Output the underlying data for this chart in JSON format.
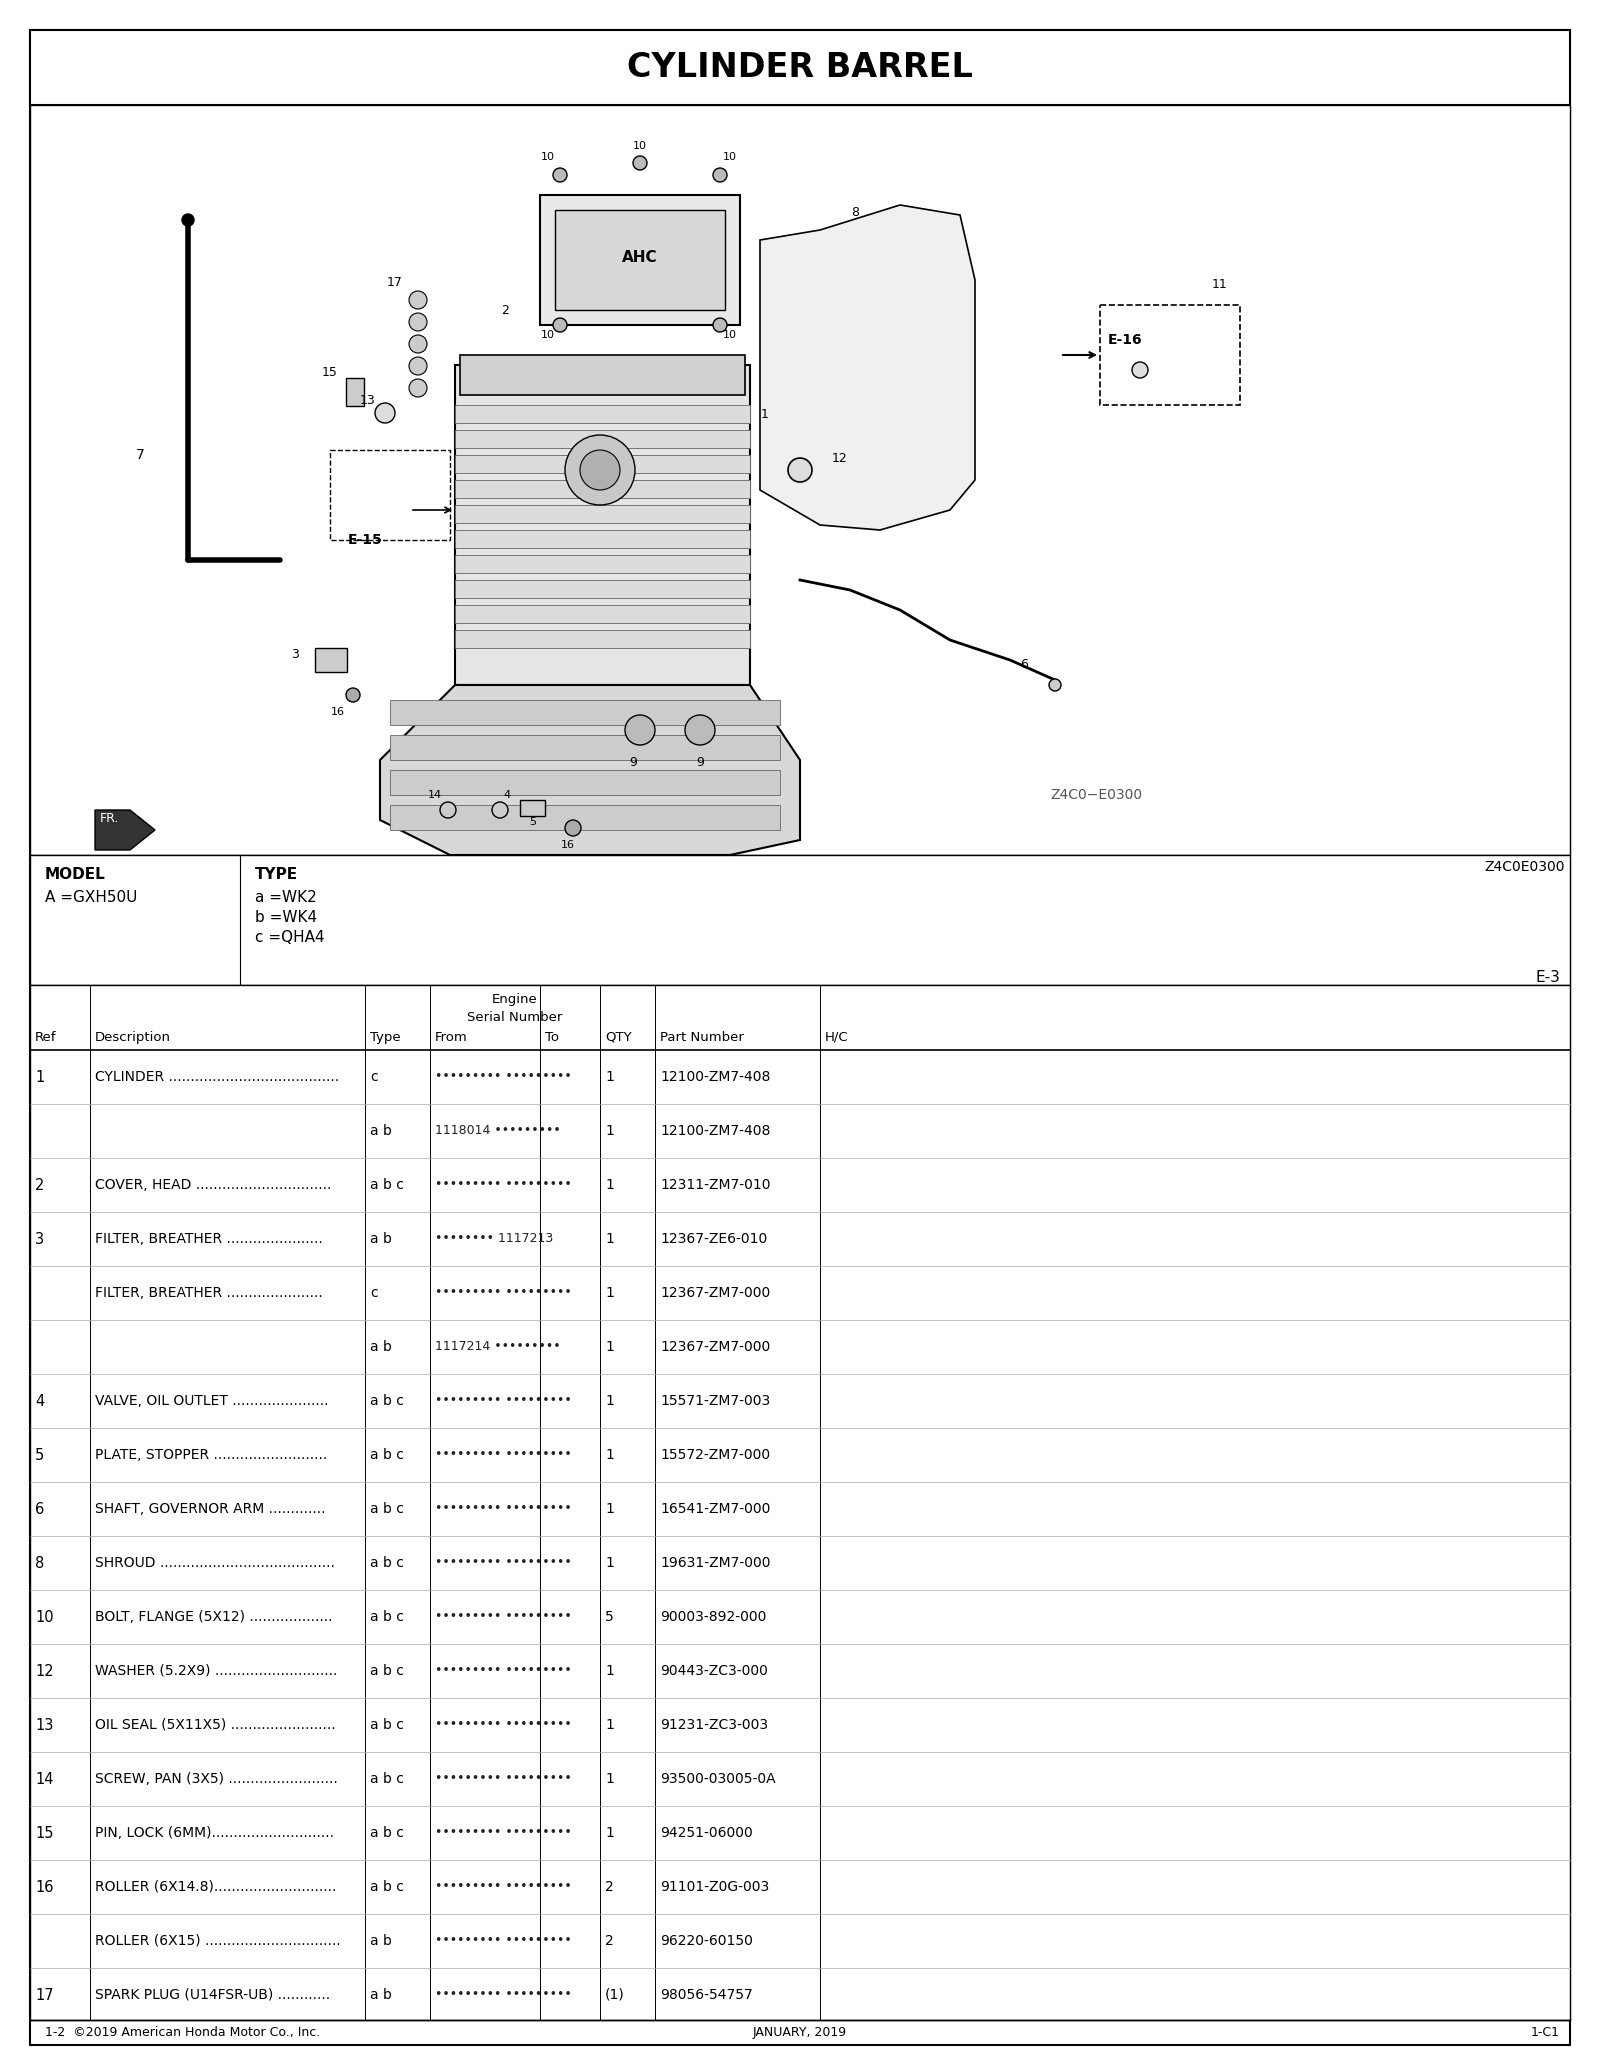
{
  "title": "CYLINDER BARREL",
  "model_info": {
    "model_label": "MODEL",
    "model_value": "A =GXH50U",
    "type_label": "TYPE",
    "type_values": [
      "a =WK2",
      "b =WK4",
      "c =QHA4"
    ]
  },
  "page_code": "Z4C0E0300",
  "diagram_code": "Z4C0−E0300",
  "page_ref": "E-3",
  "page_footer_left": "1-2  ©2019 American Honda Motor Co., Inc.",
  "page_footer_center": "JANUARY, 2019",
  "page_footer_right": "1-C1",
  "parts": [
    {
      "ref": "1",
      "description": "CYLINDER .......................................",
      "type": "c",
      "serial": "••••••••• •••••••••",
      "qty": "1",
      "part_number": "12100-ZM7-408"
    },
    {
      "ref": "",
      "description": "",
      "type": "a b",
      "serial": "1118014 •••••••••",
      "qty": "1",
      "part_number": "12100-ZM7-408"
    },
    {
      "ref": "2",
      "description": "COVER, HEAD ...............................",
      "type": "a b c",
      "serial": "••••••••• •••••••••",
      "qty": "1",
      "part_number": "12311-ZM7-010"
    },
    {
      "ref": "3",
      "description": "FILTER, BREATHER ......................",
      "type": "a b",
      "serial": "•••••••• 1117213",
      "qty": "1",
      "part_number": "12367-ZE6-010"
    },
    {
      "ref": "",
      "description": "FILTER, BREATHER ......................",
      "type": "c",
      "serial": "••••••••• •••••••••",
      "qty": "1",
      "part_number": "12367-ZM7-000"
    },
    {
      "ref": "",
      "description": "",
      "type": "a b",
      "serial": "1117214 •••••••••",
      "qty": "1",
      "part_number": "12367-ZM7-000"
    },
    {
      "ref": "4",
      "description": "VALVE, OIL OUTLET ......................",
      "type": "a b c",
      "serial": "••••••••• •••••••••",
      "qty": "1",
      "part_number": "15571-ZM7-003"
    },
    {
      "ref": "5",
      "description": "PLATE, STOPPER ..........................",
      "type": "a b c",
      "serial": "••••••••• •••••••••",
      "qty": "1",
      "part_number": "15572-ZM7-000"
    },
    {
      "ref": "6",
      "description": "SHAFT, GOVERNOR ARM .............",
      "type": "a b c",
      "serial": "••••••••• •••••••••",
      "qty": "1",
      "part_number": "16541-ZM7-000"
    },
    {
      "ref": "8",
      "description": "SHROUD ........................................",
      "type": "a b c",
      "serial": "••••••••• •••••••••",
      "qty": "1",
      "part_number": "19631-ZM7-000"
    },
    {
      "ref": "10",
      "description": "BOLT, FLANGE (5X12) ...................",
      "type": "a b c",
      "serial": "••••••••• •••••••••",
      "qty": "5",
      "part_number": "90003-892-000"
    },
    {
      "ref": "12",
      "description": "WASHER (5.2X9) ............................",
      "type": "a b c",
      "serial": "••••••••• •••••••••",
      "qty": "1",
      "part_number": "90443-ZC3-000"
    },
    {
      "ref": "13",
      "description": "OIL SEAL (5X11X5) ........................",
      "type": "a b c",
      "serial": "••••••••• •••••••••",
      "qty": "1",
      "part_number": "91231-ZC3-003"
    },
    {
      "ref": "14",
      "description": "SCREW, PAN (3X5) .........................",
      "type": "a b c",
      "serial": "••••••••• •••••••••",
      "qty": "1",
      "part_number": "93500-03005-0A"
    },
    {
      "ref": "15",
      "description": "PIN, LOCK (6MM)............................",
      "type": "a b c",
      "serial": "••••••••• •••••••••",
      "qty": "1",
      "part_number": "94251-06000"
    },
    {
      "ref": "16",
      "description": "ROLLER (6X14.8)............................",
      "type": "a b c",
      "serial": "••••••••• •••••••••",
      "qty": "2",
      "part_number": "91101-Z0G-003"
    },
    {
      "ref": "",
      "description": "ROLLER (6X15) ...............................",
      "type": "a b",
      "serial": "••••••••• •••••••••",
      "qty": "2",
      "part_number": "96220-60150"
    },
    {
      "ref": "17",
      "description": "SPARK PLUG (U14FSR-UB) ............",
      "type": "a b",
      "serial": "••••••••• •••••••••",
      "qty": "(1)",
      "part_number": "98056-54757"
    }
  ],
  "bg": "#ffffff",
  "black": "#000000",
  "gray": "#888888"
}
